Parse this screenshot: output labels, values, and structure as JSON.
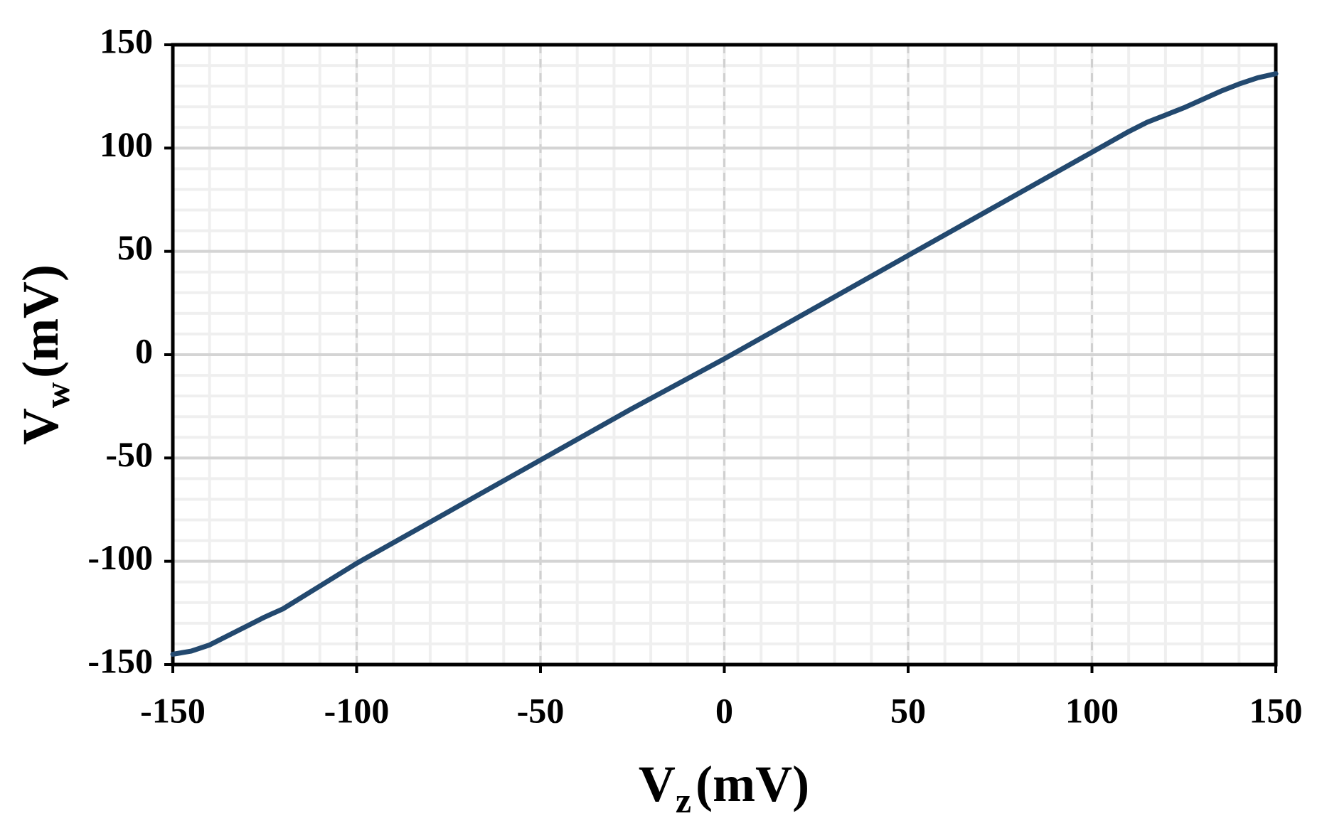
{
  "chart_data": {
    "type": "line",
    "x_label": {
      "symbol": "V",
      "subscript": "z",
      "unit": "(mV)"
    },
    "y_label": {
      "symbol": "V",
      "subscript": "w",
      "unit": "(mV)"
    },
    "x": [
      -150,
      -145,
      -140,
      -130,
      -125,
      -120,
      -110,
      -100,
      -75,
      -50,
      -25,
      0,
      25,
      50,
      75,
      100,
      110,
      115,
      120,
      125,
      130,
      135,
      140,
      145,
      150
    ],
    "series": [
      {
        "color": "#23496f",
        "values": [
          -145,
          -143.5,
          -140.5,
          -131.5,
          -127,
          -123,
          -112,
          -101,
          -76,
          -51,
          -26,
          -2,
          23,
          48,
          73,
          98,
          108,
          112.5,
          116,
          119.5,
          123.5,
          127.5,
          131,
          134,
          136
        ]
      }
    ],
    "xlim": [
      -150,
      150
    ],
    "ylim": [
      -150,
      150
    ],
    "xticks": [
      -150,
      -100,
      -50,
      0,
      50,
      100,
      150
    ],
    "yticks": [
      -150,
      -100,
      -50,
      0,
      50,
      100,
      150
    ],
    "grid": true,
    "minor_grid_step": 10
  }
}
